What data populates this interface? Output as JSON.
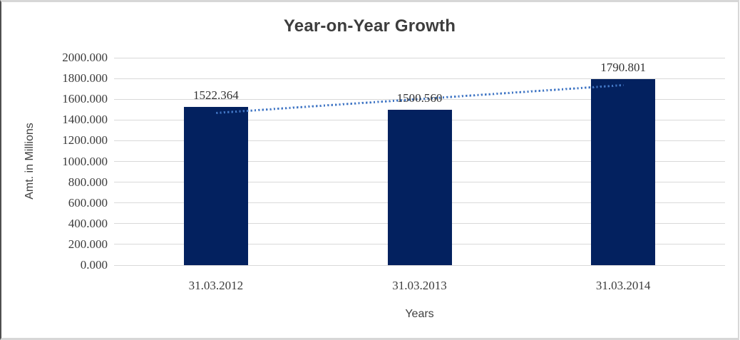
{
  "chart_data": {
    "type": "bar",
    "title": "Year-on-Year Growth",
    "xlabel": "Years",
    "ylabel": "Amt. in Millions",
    "categories": [
      "31.03.2012",
      "31.03.2013",
      "31.03.2014"
    ],
    "values": [
      1522.364,
      1500.56,
      1790.801
    ],
    "data_labels": [
      "1522.364",
      "1500.560",
      "1790.801"
    ],
    "ylim": [
      0,
      2000
    ],
    "y_ticks": [
      0,
      200,
      400,
      600,
      800,
      1000,
      1200,
      1400,
      1600,
      1800,
      2000
    ],
    "y_tick_labels": [
      "0.000",
      "200.000",
      "400.000",
      "600.000",
      "800.000",
      "1000.000",
      "1200.000",
      "1400.000",
      "1600.000",
      "1800.000",
      "2000.000"
    ],
    "grid": "horizontal",
    "legend": "none",
    "trendline": {
      "type": "linear",
      "style": "dotted",
      "start_value": 1470.4,
      "end_value": 1738.8,
      "color": "#4277c5"
    },
    "colors": {
      "bar": "#03215f",
      "gridline": "#d9d9d9",
      "title": "#3d3d3d",
      "tick_label": "#3c3c3c",
      "axis_title": "#3f3f3f"
    }
  }
}
